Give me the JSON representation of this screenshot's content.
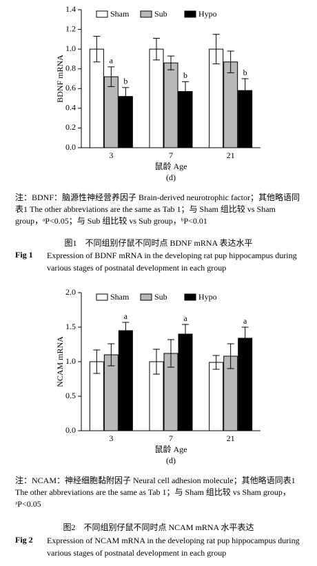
{
  "chart_data": [
    {
      "type": "bar",
      "y_label": "BDNF mRNA",
      "x_label": "鼠龄 Age",
      "panel": "(d)",
      "categories": [
        "3",
        "7",
        "21"
      ],
      "series": [
        {
          "name": "Sham",
          "color": "#ffffff",
          "values": [
            1.0,
            1.0,
            1.0
          ],
          "errors": [
            0.13,
            0.11,
            0.15
          ],
          "annotations": [
            null,
            null,
            null
          ]
        },
        {
          "name": "Sub",
          "color": "#b8b8b8",
          "values": [
            0.72,
            0.86,
            0.87
          ],
          "errors": [
            0.1,
            0.07,
            0.11
          ],
          "annotations": [
            "a",
            null,
            null
          ]
        },
        {
          "name": "Hypo",
          "color": "#000000",
          "values": [
            0.52,
            0.57,
            0.58
          ],
          "errors": [
            0.09,
            0.1,
            0.12
          ],
          "annotations": [
            "b",
            "b",
            "b"
          ]
        }
      ],
      "ylim": [
        0,
        1.4
      ],
      "yticks": [
        {
          "value": 0,
          "label": "0.0"
        },
        0.2,
        0.4,
        0.6,
        0.8,
        {
          "value": 1,
          "label": "1.0"
        },
        1.2,
        1.4
      ]
    },
    {
      "type": "bar",
      "y_label": "NCAM mRNA",
      "x_label": "鼠龄 Age",
      "panel": "(d)",
      "categories": [
        "3",
        "7",
        "21"
      ],
      "series": [
        {
          "name": "Sham",
          "color": "#ffffff",
          "values": [
            1.0,
            1.0,
            0.99
          ],
          "errors": [
            0.17,
            0.18,
            0.1
          ],
          "annotations": [
            null,
            null,
            null
          ]
        },
        {
          "name": "Sub",
          "color": "#b8b8b8",
          "values": [
            1.1,
            1.12,
            1.08
          ],
          "errors": [
            0.16,
            0.2,
            0.18
          ],
          "annotations": [
            null,
            null,
            null
          ]
        },
        {
          "name": "Hypo",
          "color": "#000000",
          "values": [
            1.45,
            1.4,
            1.34
          ],
          "errors": [
            0.12,
            0.14,
            0.16
          ],
          "annotations": [
            "a",
            "a",
            "a"
          ]
        }
      ],
      "ylim": [
        0,
        2
      ],
      "yticks": [
        {
          "value": 0,
          "label": "0.0"
        },
        0.5,
        {
          "value": 1,
          "label": "1.0"
        },
        1.5,
        {
          "value": 2,
          "label": "2.0"
        }
      ]
    }
  ],
  "figures": [
    {
      "note": "注：BDNF：脑源性神经营养因子 Brain-derived neurotrophic factor；其他略语同表1 The other abbreviations are the same as Tab 1；与 Sham 组比较 vs Sham group，ᵃP<0.05；与 Sub 组比较 vs Sub group，ᵇP<0.01",
      "caption_cn": "图1　不同组别仔鼠不同时点 BDNF mRNA 表达水平",
      "fig_label": "Fig 1",
      "caption_en": "Expression of BDNF mRNA in the developing rat pup hippocampus during various stages of postnatal development in each group"
    },
    {
      "note": "注：NCAM：神经细胞黏附因子 Neural cell adhesion molecule；其他略语同表1 The other abbreviations are the same as Tab 1；与 Sham 组比较 vs Sham group，ᵃP<0.05",
      "caption_cn": "图2　不同组别仔鼠不同时点 NCAM mRNA 水平表达",
      "fig_label": "Fig 2",
      "caption_en": "Expression of NCAM mRNA in the developing rat pup hippocampus during various stages of postnatal development in each group"
    }
  ]
}
